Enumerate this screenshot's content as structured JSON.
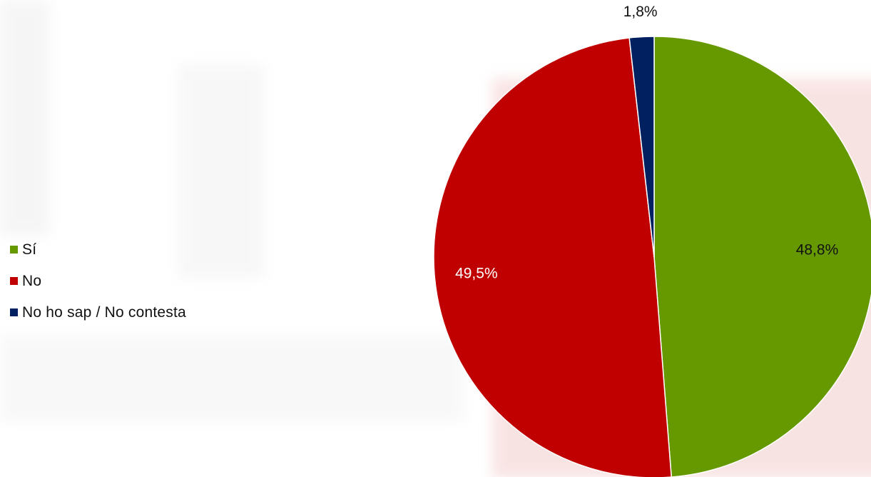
{
  "chart_data": {
    "type": "pie",
    "title": "",
    "categories": [
      "Sí",
      "No",
      "No ho sap / No contesta"
    ],
    "values": [
      48.8,
      49.5,
      1.8
    ],
    "value_labels": [
      "48,8%",
      "49,5%",
      "1,8%"
    ],
    "colors": [
      "#669900",
      "#C00000",
      "#002060"
    ],
    "label_colors": [
      "#111111",
      "#ffffff",
      "#111111"
    ],
    "start_angle_deg": 0,
    "direction": "clockwise",
    "legend_position": "left"
  },
  "legend": {
    "items": [
      {
        "label": "Sí",
        "color": "#669900"
      },
      {
        "label": "No",
        "color": "#C00000"
      },
      {
        "label": "No ho sap / No contesta",
        "color": "#002060"
      }
    ]
  }
}
